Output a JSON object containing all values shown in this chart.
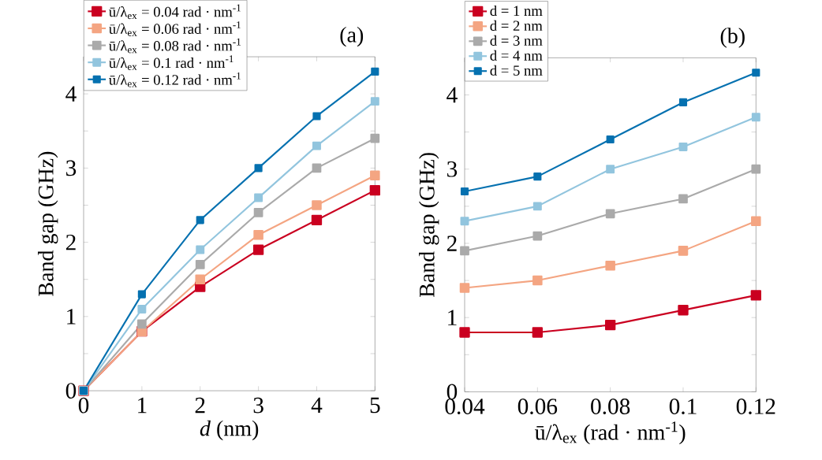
{
  "chart_data": [
    {
      "type": "line",
      "title": "(a)",
      "xlabel": "*d* (nm)",
      "ylabel": "Band gap (GHz)",
      "x": [
        0,
        1,
        2,
        3,
        4,
        5
      ],
      "xlim": [
        0,
        5
      ],
      "xticks": [
        0,
        1,
        2,
        3,
        4,
        5
      ],
      "ylim": [
        0,
        4.5
      ],
      "yticks": [
        0,
        {
          "value": 0.5,
          "label": null
        },
        1,
        {
          "value": 1.5,
          "label": null
        },
        2,
        {
          "value": 2.5,
          "label": null
        },
        3,
        {
          "value": 3.5,
          "label": null
        },
        4
      ],
      "marker": "square",
      "legend": "top left",
      "series": [
        {
          "name": "ū/λ$_{ex}$ = 0.04 rad · nm$^{-1}$",
          "color": "#ca0020",
          "values": [
            0,
            0.8,
            1.4,
            1.9,
            2.3,
            2.7
          ]
        },
        {
          "name": "ū/λ$_{ex}$ = 0.06 rad · nm$^{-1}$",
          "color": "#f4a582",
          "values": [
            0,
            0.8,
            1.5,
            2.1,
            2.5,
            2.9
          ]
        },
        {
          "name": "ū/λ$_{ex}$ = 0.08 rad · nm$^{-1}$",
          "color": "#aaaaaa",
          "values": [
            0,
            0.9,
            1.7,
            2.4,
            3.0,
            3.4
          ]
        },
        {
          "name": "ū/λ$_{ex}$ = 0.1 rad · nm$^{-1}$",
          "color": "#92c5de",
          "values": [
            0,
            1.1,
            1.9,
            2.6,
            3.3,
            3.9
          ]
        },
        {
          "name": "ū/λ$_{ex}$ = 0.12 rad · nm$^{-1}$",
          "color": "#0571b0",
          "values": [
            0,
            1.3,
            2.3,
            3.0,
            3.7,
            4.3
          ]
        }
      ]
    },
    {
      "type": "line",
      "title": "(b)",
      "xlabel": "ū/λ$_{ex}$ (rad · nm$^{-1}$)",
      "ylabel": "Band gap (GHz)",
      "x": [
        0.04,
        0.06,
        0.08,
        0.1,
        0.12
      ],
      "xlim": [
        0.04,
        0.12
      ],
      "xticks": [
        0.04,
        0.06,
        0.08,
        0.1,
        0.12
      ],
      "ylim": [
        0,
        4.5
      ],
      "yticks": [
        0,
        {
          "value": 0.5,
          "label": null
        },
        1,
        {
          "value": 1.5,
          "label": null
        },
        2,
        {
          "value": 2.5,
          "label": null
        },
        3,
        {
          "value": 3.5,
          "label": null
        },
        4
      ],
      "marker": "square",
      "legend": "top left",
      "series": [
        {
          "name": "d = 1 nm",
          "color": "#ca0020",
          "values": [
            0.8,
            0.8,
            0.9,
            1.1,
            1.3
          ]
        },
        {
          "name": "d = 2 nm",
          "color": "#f4a582",
          "values": [
            1.4,
            1.5,
            1.7,
            1.9,
            2.3
          ]
        },
        {
          "name": "d = 3 nm",
          "color": "#aaaaaa",
          "values": [
            1.9,
            2.1,
            2.4,
            2.6,
            3.0
          ]
        },
        {
          "name": "d = 4 nm",
          "color": "#92c5de",
          "values": [
            2.3,
            2.5,
            3.0,
            3.3,
            3.7
          ]
        },
        {
          "name": "d = 5 nm",
          "color": "#0571b0",
          "values": [
            2.7,
            2.9,
            3.4,
            3.9,
            4.3
          ]
        }
      ]
    }
  ]
}
